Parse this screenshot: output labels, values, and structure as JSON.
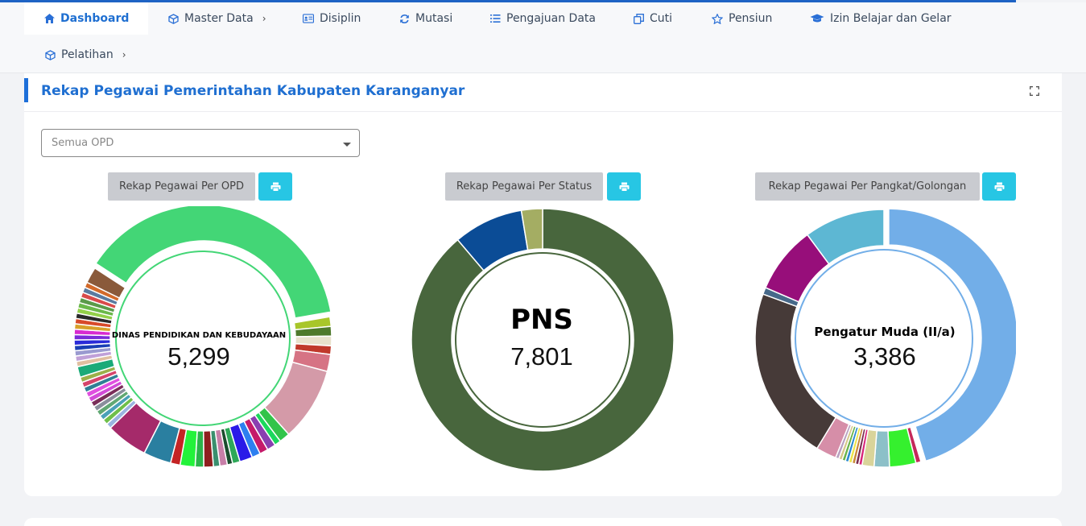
{
  "colors": {
    "accent": "#1f6fd1",
    "print_button": "#27c6e4"
  },
  "nav": {
    "items": [
      {
        "label": "Dashboard",
        "icon": "home-icon",
        "active": true
      },
      {
        "label": "Master Data",
        "icon": "cube-icon",
        "has_submenu": true
      },
      {
        "label": "Disiplin",
        "icon": "id-card-icon"
      },
      {
        "label": "Mutasi",
        "icon": "refresh-icon"
      },
      {
        "label": "Pengajuan Data",
        "icon": "list-icon"
      },
      {
        "label": "Cuti",
        "icon": "copy-icon"
      },
      {
        "label": "Pensiun",
        "icon": "star-icon"
      },
      {
        "label": "Izin Belajar dan Gelar",
        "icon": "graduation-cap-icon"
      },
      {
        "label": "Pelatihan",
        "icon": "cube-icon",
        "has_submenu": true
      }
    ]
  },
  "card": {
    "title": "Rekap Pegawai Pemerintahan Kabupaten Karanganyar",
    "filter": {
      "selected": "Semua OPD"
    }
  },
  "panels": [
    {
      "button_label": "Rekap Pegawai Per OPD",
      "print_icon": "print-icon"
    },
    {
      "button_label": "Rekap Pegawai Per Status",
      "print_icon": "print-icon"
    },
    {
      "button_label": "Rekap Pegawai Per Pangkat/Golongan",
      "print_icon": "print-icon"
    }
  ],
  "chart_data": [
    {
      "type": "pie",
      "donut": true,
      "center_label": "DINAS PENDIDIKAN DAN KEBUDAYAAN",
      "center_value": "5,299",
      "slices": [
        {
          "value": 28.5,
          "color": "#43d676"
        },
        {
          "value": 0.9,
          "color": "#a8c62a"
        },
        {
          "value": 0.9,
          "color": "#4e7a2c"
        },
        {
          "value": 0.9,
          "color": "#e8e2cc"
        },
        {
          "value": 0.8,
          "color": "#c0392b"
        },
        {
          "value": 1.6,
          "color": "#d67384"
        },
        {
          "value": 6.9,
          "color": "#d49aa8"
        },
        {
          "value": 1.0,
          "color": "#32c44a"
        },
        {
          "value": 0.6,
          "color": "#1bd85c"
        },
        {
          "value": 0.8,
          "color": "#8a3fb0"
        },
        {
          "value": 0.8,
          "color": "#c51a6a"
        },
        {
          "value": 0.8,
          "color": "#2d7ff0"
        },
        {
          "value": 1.2,
          "color": "#2a1ae8"
        },
        {
          "value": 0.7,
          "color": "#2ea858"
        },
        {
          "value": 0.5,
          "color": "#1b4d2e"
        },
        {
          "value": 0.7,
          "color": "#c77fa8"
        },
        {
          "value": 0.6,
          "color": "#3a8f6e"
        },
        {
          "value": 0.9,
          "color": "#8f1f1f"
        },
        {
          "value": 0.8,
          "color": "#2bb44a"
        },
        {
          "value": 1.4,
          "color": "#23f23a"
        },
        {
          "value": 0.9,
          "color": "#c42424"
        },
        {
          "value": 2.6,
          "color": "#2a7fa0"
        },
        {
          "value": 3.9,
          "color": "#a52a6a"
        },
        {
          "value": 0.5,
          "color": "#9ab4e0"
        },
        {
          "value": 0.5,
          "color": "#6fbf4a"
        },
        {
          "value": 0.5,
          "color": "#4aa1b8"
        },
        {
          "value": 0.5,
          "color": "#61a873"
        },
        {
          "value": 0.5,
          "color": "#8a8e9c"
        },
        {
          "value": 0.5,
          "color": "#7a2e5a"
        },
        {
          "value": 0.5,
          "color": "#d24bd8"
        },
        {
          "value": 0.5,
          "color": "#e04fe0"
        },
        {
          "value": 0.5,
          "color": "#2f7f96"
        },
        {
          "value": 0.5,
          "color": "#d5446b"
        },
        {
          "value": 0.5,
          "color": "#9bb04a"
        },
        {
          "value": 1.0,
          "color": "#1aaa78"
        },
        {
          "value": 0.5,
          "color": "#e0bfa0"
        },
        {
          "value": 0.5,
          "color": "#c0a0d8"
        },
        {
          "value": 0.5,
          "color": "#9a9ad0"
        },
        {
          "value": 0.5,
          "color": "#1a3fb4"
        },
        {
          "value": 0.5,
          "color": "#2a2ad8"
        },
        {
          "value": 0.5,
          "color": "#7a2ad8"
        },
        {
          "value": 0.5,
          "color": "#d82ad0"
        },
        {
          "value": 0.5,
          "color": "#d8a02a"
        },
        {
          "value": 0.5,
          "color": "#d84a2a"
        },
        {
          "value": 0.5,
          "color": "#2a2a2a"
        },
        {
          "value": 0.5,
          "color": "#93d04a"
        },
        {
          "value": 0.5,
          "color": "#6ab84a"
        },
        {
          "value": 0.5,
          "color": "#5a9a4a"
        },
        {
          "value": 0.5,
          "color": "#d84a4a"
        },
        {
          "value": 0.5,
          "color": "#5a7aa0"
        },
        {
          "value": 0.5,
          "color": "#d26a2a"
        },
        {
          "value": 1.5,
          "color": "#8a5a3a"
        }
      ]
    },
    {
      "type": "pie",
      "donut": true,
      "center_label": "PNS",
      "center_value": "7,801",
      "slices": [
        {
          "value": 88.8,
          "color": "#48663d"
        },
        {
          "value": 8.6,
          "color": "#0b4c96"
        },
        {
          "value": 2.6,
          "color": "#a4ad63"
        }
      ]
    },
    {
      "type": "pie",
      "donut": true,
      "center_label": "Pengatur Muda (II/a)",
      "center_value": "3,386",
      "slices": [
        {
          "value": 42.5,
          "color": "#72aee8"
        },
        {
          "value": 0.6,
          "color": "#c42a5a"
        },
        {
          "value": 3.1,
          "color": "#35f02e"
        },
        {
          "value": 1.8,
          "color": "#8cc0c8"
        },
        {
          "value": 1.4,
          "color": "#d9d49a"
        },
        {
          "value": 0.4,
          "color": "#d8257a"
        },
        {
          "value": 0.4,
          "color": "#7a2d50"
        },
        {
          "value": 0.4,
          "color": "#c88a3a"
        },
        {
          "value": 0.4,
          "color": "#ece44a"
        },
        {
          "value": 0.4,
          "color": "#2a8ad0"
        },
        {
          "value": 0.4,
          "color": "#6ab44a"
        },
        {
          "value": 0.4,
          "color": "#d6c88a"
        },
        {
          "value": 0.4,
          "color": "#b8a0c0"
        },
        {
          "value": 2.4,
          "color": "#d68ea8"
        },
        {
          "value": 20.5,
          "color": "#463a38"
        },
        {
          "value": 0.8,
          "color": "#47698a"
        },
        {
          "value": 7.9,
          "color": "#970e7a"
        },
        {
          "value": 9.5,
          "color": "#5db7d3"
        }
      ]
    }
  ]
}
